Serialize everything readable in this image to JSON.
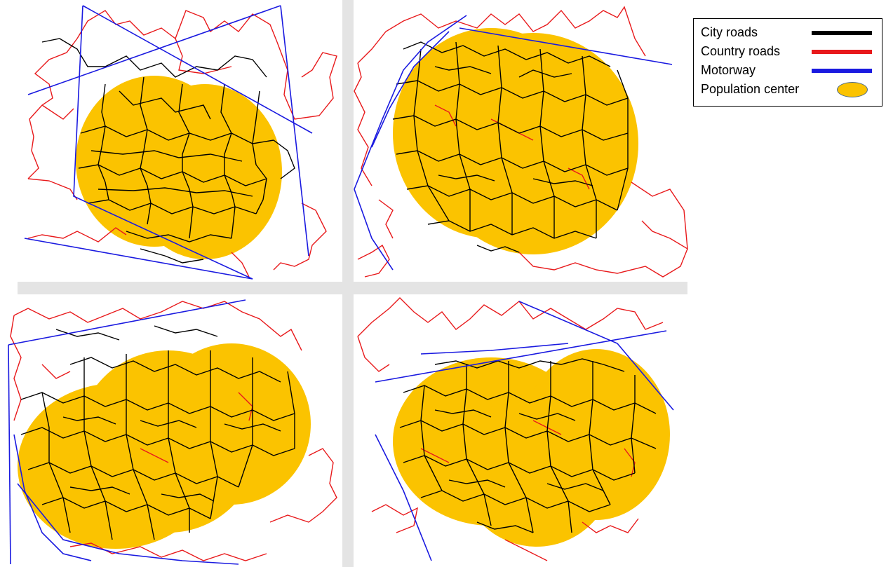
{
  "colors": {
    "city_road": "#000000",
    "country_road": "#e8191b",
    "motorway": "#1a1ae0",
    "population_center": "#fbc300",
    "population_center_outline": "#4a6a8a",
    "panel_background": "#ffffff",
    "separator": "#e4e4e4"
  },
  "legend": {
    "items": [
      {
        "label": "City roads",
        "kind": "line",
        "color": "#000000"
      },
      {
        "label": "Country roads",
        "kind": "line",
        "color": "#e8191b"
      },
      {
        "label": "Motorway",
        "kind": "line",
        "color": "#1a1ae0"
      },
      {
        "label": "Population center",
        "kind": "ellipse",
        "color": "#fbc300"
      }
    ]
  },
  "panels": [
    {
      "population_centers": 2,
      "motorways": 4
    },
    {
      "population_centers": 2,
      "motorways": 3
    },
    {
      "population_centers": 3,
      "motorways": 4
    },
    {
      "population_centers": 2,
      "motorways": 4
    }
  ]
}
